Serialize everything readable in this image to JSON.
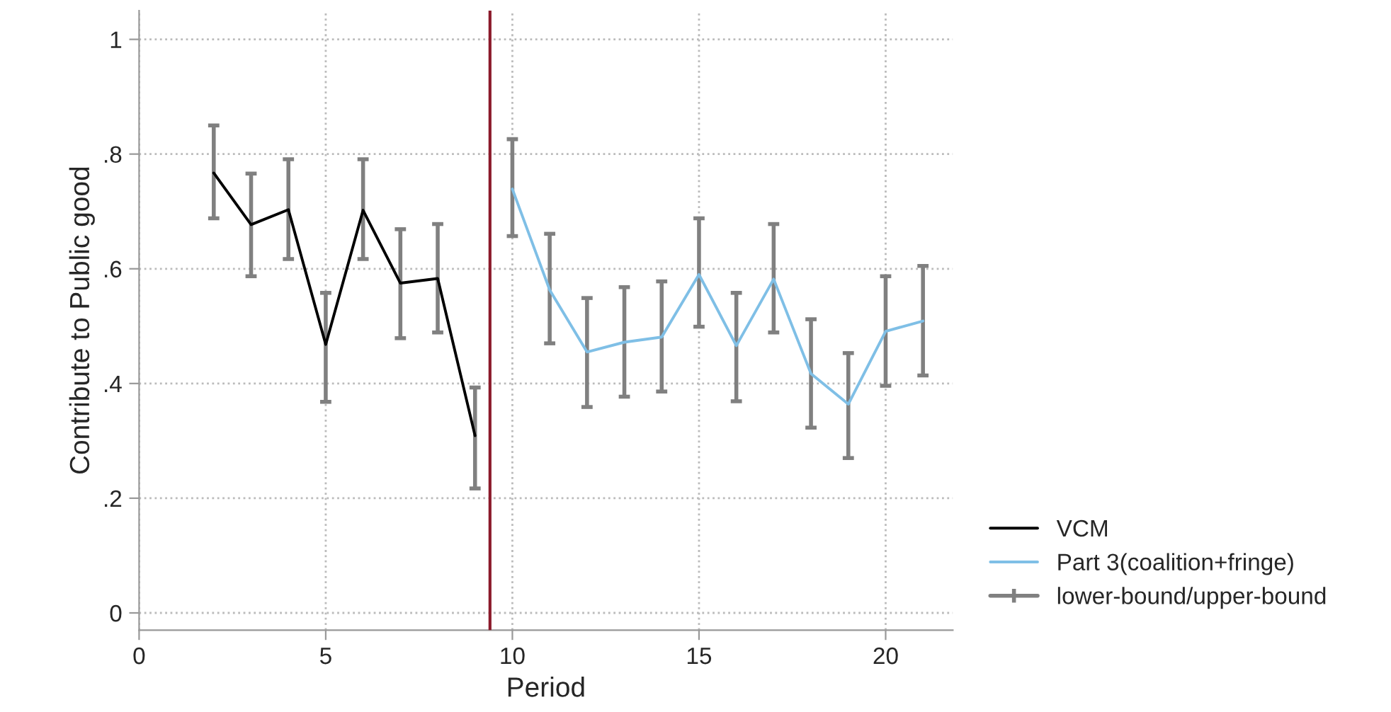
{
  "chart_data": {
    "type": "line",
    "xlabel": "Period",
    "ylabel": "Contribute to Public good",
    "xlim": [
      0,
      21.8
    ],
    "ylim": [
      -0.03,
      1.05
    ],
    "xticks": [
      0,
      5,
      10,
      15,
      20
    ],
    "yticks": [
      {
        "value": 0,
        "label": "0"
      },
      {
        "value": 0.2,
        "label": ".2"
      },
      {
        "value": 0.4,
        "label": ".4"
      },
      {
        "value": 0.6,
        "label": ".6"
      },
      {
        "value": 0.8,
        "label": ".8"
      },
      {
        "value": 1,
        "label": "1"
      }
    ],
    "grid": true,
    "legend": "right",
    "marker": "none",
    "line_style": "solid",
    "annotations": [
      "lower-bound/upper-bound"
    ],
    "ref_lines": [
      {
        "axis": "x",
        "value": 9.4,
        "color": "#8b1a2b"
      }
    ],
    "series": [
      {
        "name": "VCM",
        "color": "#000000",
        "x": [
          2,
          3,
          4,
          5,
          6,
          7,
          8,
          9
        ],
        "values": [
          0.767,
          0.677,
          0.703,
          0.468,
          0.702,
          0.575,
          0.583,
          0.309
        ],
        "errors": [
          [
            0.688,
            0.85
          ],
          [
            0.587,
            0.766
          ],
          [
            0.617,
            0.791
          ],
          [
            0.368,
            0.558
          ],
          [
            0.617,
            0.791
          ],
          [
            0.479,
            0.669
          ],
          [
            0.489,
            0.678
          ],
          [
            0.217,
            0.393
          ]
        ]
      },
      {
        "name": "Part 3(coalition+fringe)",
        "color": "#7fbfe6",
        "x": [
          10,
          11,
          12,
          13,
          14,
          15,
          16,
          17,
          18,
          19,
          20,
          21
        ],
        "values": [
          0.739,
          0.563,
          0.455,
          0.472,
          0.481,
          0.59,
          0.466,
          0.582,
          0.417,
          0.364,
          0.491,
          0.509
        ],
        "errors": [
          [
            0.657,
            0.826
          ],
          [
            0.47,
            0.661
          ],
          [
            0.359,
            0.549
          ],
          [
            0.377,
            0.568
          ],
          [
            0.386,
            0.578
          ],
          [
            0.499,
            0.688
          ],
          [
            0.369,
            0.558
          ],
          [
            0.489,
            0.678
          ],
          [
            0.323,
            0.512
          ],
          [
            0.27,
            0.453
          ],
          [
            0.396,
            0.587
          ],
          [
            0.414,
            0.605
          ]
        ]
      }
    ]
  }
}
